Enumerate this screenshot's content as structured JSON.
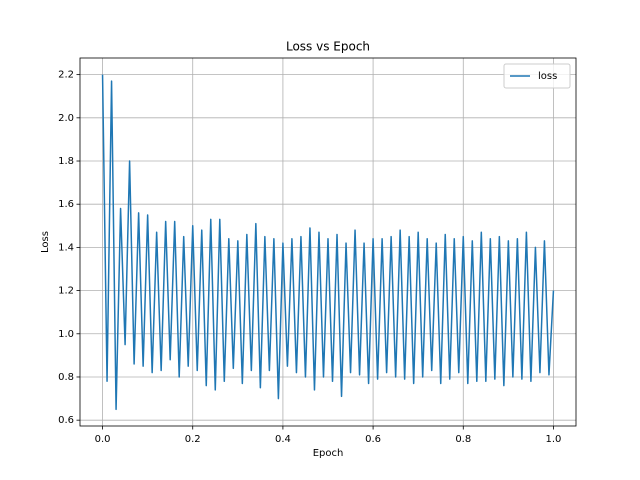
{
  "chart_data": {
    "type": "line",
    "title": "Loss vs Epoch",
    "x_label": "Epoch",
    "y_label": "Loss",
    "x": [
      0,
      0.01,
      0.02,
      0.03,
      0.04,
      0.05,
      0.06,
      0.07,
      0.08,
      0.09,
      0.1,
      0.11,
      0.12,
      0.13,
      0.14,
      0.15,
      0.16,
      0.17,
      0.18,
      0.19,
      0.2,
      0.21,
      0.22,
      0.23,
      0.24,
      0.25,
      0.26,
      0.27,
      0.28,
      0.29,
      0.3,
      0.31,
      0.32,
      0.33,
      0.34,
      0.35,
      0.36,
      0.37,
      0.38,
      0.39,
      0.4,
      0.41,
      0.42,
      0.43,
      0.44,
      0.45,
      0.46,
      0.47,
      0.48,
      0.49,
      0.5,
      0.51,
      0.52,
      0.53,
      0.54,
      0.55,
      0.56,
      0.57,
      0.58,
      0.59,
      0.6,
      0.61,
      0.62,
      0.63,
      0.64,
      0.65,
      0.66,
      0.67,
      0.68,
      0.69,
      0.7,
      0.71,
      0.72,
      0.73,
      0.74,
      0.75,
      0.76,
      0.77,
      0.78,
      0.79,
      0.8,
      0.81,
      0.82,
      0.83,
      0.84,
      0.85,
      0.86,
      0.87,
      0.88,
      0.89,
      0.9,
      0.91,
      0.92,
      0.93,
      0.94,
      0.95,
      0.96,
      0.97,
      0.98,
      0.99,
      1
    ],
    "series": [
      {
        "name": "loss",
        "color": "#1f77b4",
        "values": [
          2.2,
          0.78,
          2.17,
          0.65,
          1.58,
          0.95,
          1.8,
          0.86,
          1.56,
          0.85,
          1.55,
          0.82,
          1.47,
          0.83,
          1.52,
          0.88,
          1.52,
          0.8,
          1.45,
          0.85,
          1.5,
          0.83,
          1.48,
          0.76,
          1.53,
          0.74,
          1.53,
          0.78,
          1.44,
          0.84,
          1.43,
          0.77,
          1.46,
          0.83,
          1.51,
          0.75,
          1.45,
          0.83,
          1.44,
          0.7,
          1.42,
          0.85,
          1.44,
          0.82,
          1.45,
          0.8,
          1.49,
          0.74,
          1.47,
          0.8,
          1.44,
          0.78,
          1.46,
          0.71,
          1.42,
          0.82,
          1.48,
          0.81,
          1.42,
          0.77,
          1.44,
          0.79,
          1.44,
          0.82,
          1.45,
          0.8,
          1.48,
          0.79,
          1.45,
          0.77,
          1.47,
          0.8,
          1.44,
          0.83,
          1.42,
          0.77,
          1.46,
          0.79,
          1.44,
          0.82,
          1.45,
          0.77,
          1.43,
          0.78,
          1.47,
          0.78,
          1.44,
          0.79,
          1.45,
          0.76,
          1.43,
          0.8,
          1.44,
          0.79,
          1.47,
          0.78,
          1.4,
          0.82,
          1.43,
          0.81,
          1.2
        ]
      }
    ],
    "xlim": [
      -0.05,
      1.05
    ],
    "xticks": [
      {
        "value": 0,
        "label": "0.0"
      },
      0.2,
      0.4,
      0.6,
      0.8,
      {
        "value": 1,
        "label": "1.0"
      }
    ],
    "ylim": [
      0.573,
      2.277
    ],
    "yticks": [
      0.6,
      0.8,
      {
        "value": 1,
        "label": "1.0"
      },
      1.2,
      1.4,
      1.6,
      1.8,
      {
        "value": 2,
        "label": "2.0"
      },
      2.2
    ],
    "grid": true,
    "legend": "upper-right"
  }
}
